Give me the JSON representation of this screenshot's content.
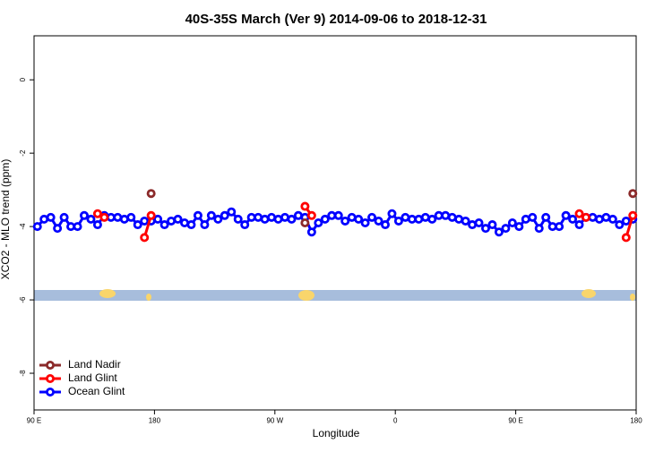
{
  "chart_data": {
    "type": "line",
    "title": "40S-35S March (Ver 9)   2014-09-06 to 2018-12-31",
    "x_label": "Longitude",
    "y_label": "XCO2 - MLO trend (ppm)",
    "x": [
      92.5,
      97.5,
      102.5,
      107.5,
      112.5,
      117.5,
      122.5,
      127.5,
      132.5,
      137.5,
      142.5,
      147.5,
      152.5,
      157.5,
      162.5,
      167.5,
      172.5,
      177.5,
      182.5,
      187.5,
      192.5,
      197.5,
      202.5,
      207.5,
      212.5,
      217.5,
      222.5,
      227.5,
      232.5,
      237.5,
      242.5,
      247.5,
      252.5,
      257.5,
      262.5,
      267.5,
      272.5,
      277.5,
      282.5,
      287.5,
      292.5,
      297.5,
      302.5,
      307.5,
      312.5,
      317.5,
      322.5,
      327.5,
      332.5,
      337.5,
      342.5,
      347.5,
      352.5,
      357.5,
      362.5,
      367.5,
      372.5,
      377.5,
      382.5,
      387.5,
      392.5,
      397.5,
      402.5,
      407.5,
      412.5,
      417.5,
      422.5,
      427.5,
      432.5,
      437.5,
      442.5,
      447.5,
      452.5,
      457.5,
      462.5,
      467.5,
      472.5,
      477.5,
      482.5,
      487.5,
      492.5,
      497.5,
      502.5,
      507.5,
      512.5,
      517.5,
      522.5,
      527.5,
      532.5,
      537.5
    ],
    "series": [
      {
        "name": "Land Nadir",
        "color": "#8b2a2a",
        "values": [
          null,
          null,
          null,
          null,
          null,
          null,
          null,
          null,
          null,
          null,
          null,
          null,
          null,
          null,
          null,
          null,
          null,
          -3.1,
          null,
          null,
          null,
          null,
          null,
          null,
          null,
          null,
          null,
          null,
          null,
          null,
          null,
          null,
          null,
          null,
          null,
          null,
          null,
          null,
          null,
          null,
          -3.9,
          null,
          null,
          null,
          null,
          null,
          null,
          null,
          null,
          null,
          null,
          null,
          null,
          null,
          null,
          null,
          null,
          null,
          null,
          null,
          null,
          null,
          null,
          null,
          null,
          null,
          null,
          null,
          null,
          null,
          null,
          null,
          null,
          null,
          null,
          null,
          null,
          null,
          null,
          null,
          null,
          null,
          null,
          null,
          null,
          null,
          null,
          null,
          null,
          -3.1
        ]
      },
      {
        "name": "Land Glint",
        "color": "#ff0000",
        "values": [
          null,
          null,
          null,
          null,
          null,
          null,
          null,
          null,
          null,
          -3.65,
          -3.75,
          null,
          null,
          null,
          null,
          null,
          -4.3,
          -3.7,
          null,
          null,
          null,
          null,
          null,
          null,
          null,
          null,
          null,
          null,
          null,
          null,
          null,
          null,
          null,
          null,
          null,
          null,
          null,
          null,
          null,
          null,
          -3.45,
          -3.7,
          null,
          null,
          null,
          null,
          null,
          null,
          null,
          null,
          null,
          null,
          null,
          null,
          null,
          null,
          null,
          null,
          null,
          null,
          null,
          null,
          null,
          null,
          null,
          null,
          null,
          null,
          null,
          null,
          null,
          null,
          null,
          null,
          null,
          null,
          null,
          null,
          null,
          null,
          null,
          -3.65,
          -3.75,
          null,
          null,
          null,
          null,
          null,
          -4.3,
          -3.7
        ]
      },
      {
        "name": "Ocean Glint",
        "color": "#0000ff",
        "values": [
          -4.0,
          -3.8,
          -3.75,
          -4.05,
          -3.75,
          -4.0,
          -4.0,
          -3.7,
          -3.8,
          -3.95,
          -3.7,
          -3.75,
          -3.75,
          -3.8,
          -3.75,
          -3.95,
          -3.85,
          -3.85,
          -3.8,
          -3.95,
          -3.85,
          -3.8,
          -3.9,
          -3.95,
          -3.7,
          -3.95,
          -3.7,
          -3.8,
          -3.7,
          -3.6,
          -3.8,
          -3.95,
          -3.75,
          -3.75,
          -3.8,
          -3.75,
          -3.8,
          -3.75,
          -3.8,
          -3.7,
          -3.75,
          -4.15,
          -3.9,
          -3.8,
          -3.7,
          -3.7,
          -3.85,
          -3.75,
          -3.8,
          -3.9,
          -3.75,
          -3.85,
          -3.95,
          -3.65,
          -3.85,
          -3.75,
          -3.8,
          -3.8,
          -3.75,
          -3.8,
          -3.7,
          -3.7,
          -3.75,
          -3.8,
          -3.85,
          -3.95,
          -3.9,
          -4.05,
          -3.95,
          -4.15,
          -4.05,
          -3.9,
          -4.0,
          -3.8,
          -3.75,
          -4.05,
          -3.75,
          -4.0,
          -4.0,
          -3.7,
          -3.8,
          -3.95,
          -3.75,
          -3.75,
          -3.8,
          -3.75,
          -3.8,
          -3.95,
          -3.85,
          -3.8
        ]
      }
    ],
    "xlim": [
      90,
      540
    ],
    "xticks": [
      {
        "value": 90,
        "label": "90 E"
      },
      180,
      {
        "value": 270,
        "label": "90 W"
      },
      {
        "value": 360,
        "label": "0"
      },
      {
        "value": 450,
        "label": "90 E"
      },
      {
        "value": 540,
        "label": "180"
      }
    ],
    "ylim": [
      -9,
      1.2
    ],
    "yticks": [
      0,
      -2,
      -4,
      -6,
      -8
    ],
    "legend": "bottom-left"
  }
}
